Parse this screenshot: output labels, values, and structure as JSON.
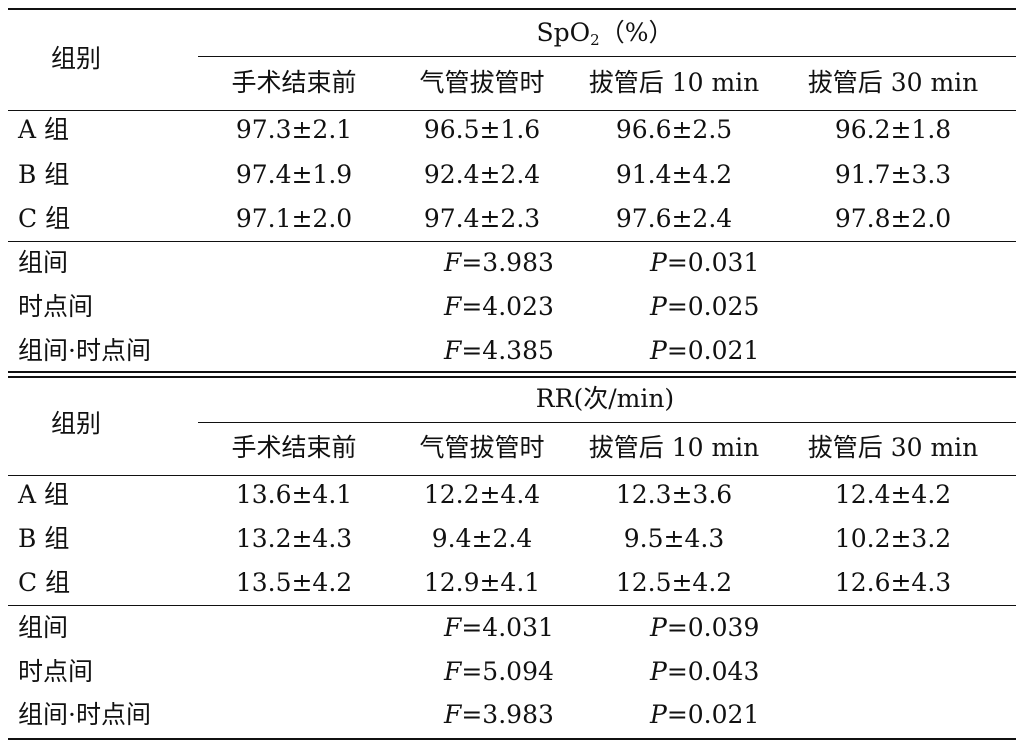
{
  "tables": [
    {
      "group_header": "组别",
      "measure_pre": "SpO",
      "measure_sub": "2",
      "measure_post": "（%）",
      "columns": [
        "手术结束前",
        "气管拔管时",
        "拔管后 10 min",
        "拔管后 30 min"
      ],
      "rows": [
        {
          "label": "A 组",
          "values": [
            "97.3±2.1",
            "96.5±1.6",
            "96.6±2.5",
            "96.2±1.8"
          ]
        },
        {
          "label": "B 组",
          "values": [
            "97.4±1.9",
            "92.4±2.4",
            "91.4±4.2",
            "91.7±3.3"
          ]
        },
        {
          "label": "C 组",
          "values": [
            "97.1±2.0",
            "97.4±2.3",
            "97.6±2.4",
            "97.8±2.0"
          ]
        }
      ],
      "stats": [
        {
          "label": "组间",
          "f_label": "F",
          "f_value": "=3.983",
          "p_label": "P",
          "p_value": "=0.031"
        },
        {
          "label": "时点间",
          "f_label": "F",
          "f_value": "=4.023",
          "p_label": "P",
          "p_value": "=0.025"
        },
        {
          "label": "组间·时点间",
          "f_label": "F",
          "f_value": "=4.385",
          "p_label": "P",
          "p_value": "=0.021"
        }
      ]
    },
    {
      "group_header": "组别",
      "measure_pre": "RR(次/min)",
      "measure_sub": "",
      "measure_post": "",
      "columns": [
        "手术结束前",
        "气管拔管时",
        "拔管后 10 min",
        "拔管后 30 min"
      ],
      "rows": [
        {
          "label": "A 组",
          "values": [
            "13.6±4.1",
            "12.2±4.4",
            "12.3±3.6",
            "12.4±4.2"
          ]
        },
        {
          "label": "B 组",
          "values": [
            "13.2±4.3",
            "9.4±2.4",
            "9.5±4.3",
            "10.2±3.2"
          ]
        },
        {
          "label": "C 组",
          "values": [
            "13.5±4.2",
            "12.9±4.1",
            "12.5±4.2",
            "12.6±4.3"
          ]
        }
      ],
      "stats": [
        {
          "label": "组间",
          "f_label": "F",
          "f_value": "=4.031",
          "p_label": "P",
          "p_value": "=0.039"
        },
        {
          "label": "时点间",
          "f_label": "F",
          "f_value": "=5.094",
          "p_label": "P",
          "p_value": "=0.043"
        },
        {
          "label": "组间·时点间",
          "f_label": "F",
          "f_value": "=3.983",
          "p_label": "P",
          "p_value": "=0.021"
        }
      ]
    }
  ]
}
